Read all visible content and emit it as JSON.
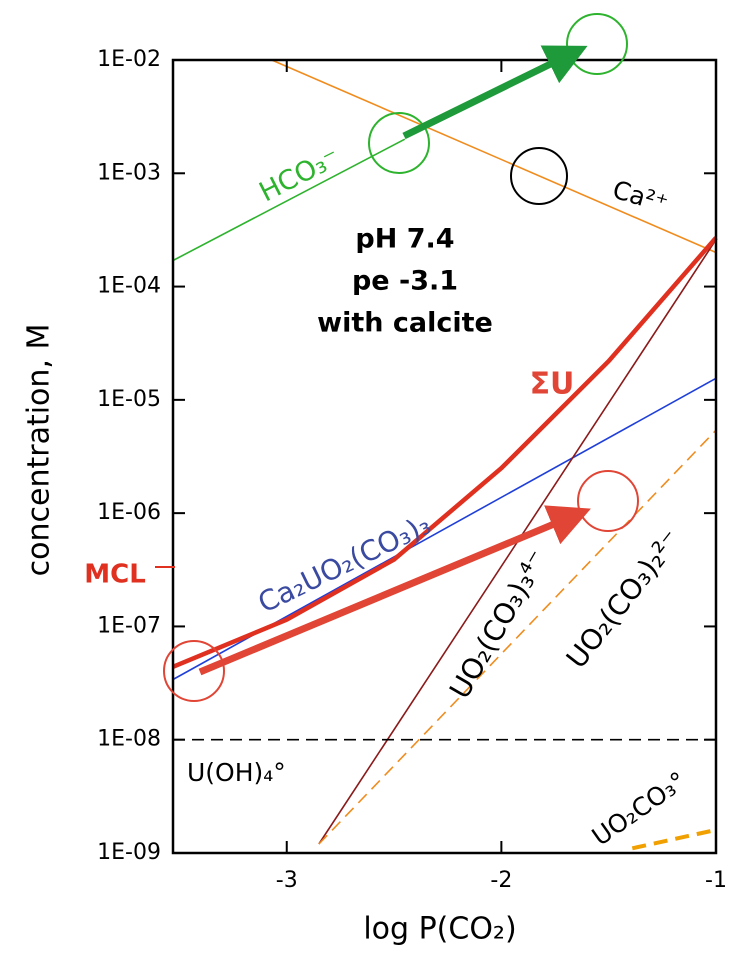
{
  "chart_data": {
    "type": "line",
    "x_label": "log P(CO₂)",
    "y_label": "concentration,   M",
    "xlim": [
      -3.53,
      -1
    ],
    "xticks": [
      -3,
      -2,
      -1
    ],
    "ylim": [
      1e-09,
      0.01
    ],
    "yscale": "log",
    "yticks": [
      {
        "value": 0.01,
        "label": "1E-02"
      },
      {
        "value": 0.001,
        "label": "1E-03"
      },
      {
        "value": 0.0001,
        "label": "1E-04"
      },
      {
        "value": 1e-05,
        "label": "1E-05"
      },
      {
        "value": 1e-06,
        "label": "1E-06"
      },
      {
        "value": 1e-07,
        "label": "1E-07"
      },
      {
        "value": 1e-08,
        "label": "1E-08"
      },
      {
        "value": 1e-09,
        "label": "1E-09"
      }
    ],
    "annotations": [
      "pH  7.4",
      "pe  -3.1",
      "with calcite",
      "ΣU",
      "MCL"
    ],
    "series": [
      {
        "name": "HCO₃⁻",
        "color": "#2db32d",
        "style": "solid",
        "x": [
          -3.53,
          -2.45
        ],
        "values": [
          0.00017,
          0.002
        ]
      },
      {
        "name": "Ca²⁺",
        "color": "#f08c1e",
        "style": "solid",
        "x": [
          -3.07,
          -1
        ],
        "values": [
          0.01,
          0.0002
        ]
      },
      {
        "name": "Ca₂UO₂(CO₃)₃",
        "color": "#1f3fd9",
        "style": "solid",
        "x": [
          -3.53,
          -1
        ],
        "values": [
          3.4e-08,
          1.55e-05
        ]
      },
      {
        "name": "UO₂(CO₃)₃⁴⁻",
        "color": "#8b1a1a",
        "style": "solid",
        "x": [
          -2.85,
          -1
        ],
        "values": [
          1.2e-09,
          0.00026
        ]
      },
      {
        "name": "UO₂(CO₃)₂²⁻",
        "color": "#f08c1e",
        "style": "dashed",
        "x": [
          -2.85,
          -1
        ],
        "values": [
          1.2e-09,
          5.4e-06
        ]
      },
      {
        "name": "UO₂CO₃°",
        "color": "#f0a000",
        "style": "thick-dashed",
        "x": [
          -1.39,
          -1
        ],
        "values": [
          1.1e-09,
          1.6e-09
        ]
      },
      {
        "name": "U(OH)₄°",
        "color": "#000000",
        "style": "dashed",
        "x": [
          -3.53,
          -1
        ],
        "values": [
          1e-08,
          1e-08
        ]
      },
      {
        "name": "ΣU",
        "color": "#e03020",
        "style": "thick",
        "x": [
          -3.53,
          -3,
          -2.5,
          -2,
          -1.5,
          -1
        ],
        "values": [
          4.4e-08,
          1.15e-07,
          3.9e-07,
          2.5e-06,
          2.2e-05,
          0.00027
        ]
      }
    ]
  }
}
